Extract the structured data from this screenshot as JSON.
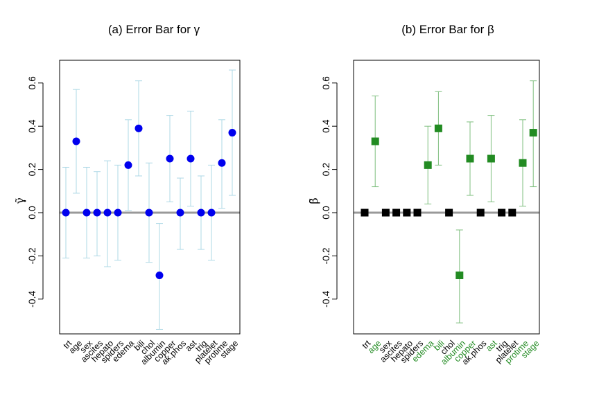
{
  "chart_data": [
    {
      "type": "scatter",
      "title": "(a) Error Bar for γ",
      "ylabel": "γ̃",
      "ylim": [
        -0.55,
        0.7
      ],
      "yticks": [
        -0.4,
        -0.2,
        0.0,
        0.2,
        0.4,
        0.6
      ],
      "ytick_labels": [
        "-0.4",
        "-0.2",
        "0.0",
        "0.2",
        "0.4",
        "0.6"
      ],
      "grid": false,
      "reference_line": 0.0,
      "reference_color": "#999999",
      "marker": "circle",
      "marker_color": "#0000ee",
      "errorbar_color": "#add8e6",
      "label_color": "#000000",
      "categories": [
        "trt",
        "age",
        "sex",
        "ascites",
        "hepato",
        "spiders",
        "edema",
        "bili",
        "chol",
        "albumin",
        "copper",
        "ak.phos",
        "ast",
        "trig",
        "platelet",
        "protime",
        "stage"
      ],
      "values": [
        0.0,
        0.33,
        0.0,
        0.0,
        0.0,
        0.0,
        0.22,
        0.39,
        0.0,
        -0.29,
        0.25,
        0.0,
        0.25,
        0.0,
        0.0,
        0.23,
        0.37
      ],
      "lower": [
        -0.21,
        0.09,
        -0.21,
        -0.2,
        -0.25,
        -0.22,
        0.01,
        0.17,
        -0.23,
        -0.54,
        0.05,
        -0.17,
        0.03,
        -0.17,
        -0.22,
        0.02,
        0.08
      ],
      "upper": [
        0.21,
        0.57,
        0.21,
        0.19,
        0.24,
        0.22,
        0.43,
        0.61,
        0.23,
        -0.05,
        0.45,
        0.16,
        0.47,
        0.17,
        0.22,
        0.43,
        0.66
      ]
    },
    {
      "type": "scatter",
      "title": "(b) Error Bar for β",
      "ylabel": "β̃",
      "ylim": [
        -0.55,
        0.7
      ],
      "yticks": [
        -0.4,
        -0.2,
        0.0,
        0.2,
        0.4,
        0.6
      ],
      "ytick_labels": [
        "-0.4",
        "-0.2",
        "0.0",
        "0.2",
        "0.4",
        "0.6"
      ],
      "grid": false,
      "reference_line": 0.0,
      "reference_color": "#999999",
      "marker": "square",
      "selected_color": "#228b22",
      "unselected_color": "#000000",
      "errorbar_color": "#7fbf7f",
      "categories": [
        "trt",
        "age",
        "sex",
        "ascites",
        "hepato",
        "spiders",
        "edema",
        "bili",
        "chol",
        "albumin",
        "copper",
        "ak.phos",
        "ast",
        "trig",
        "platelet",
        "protime",
        "stage"
      ],
      "selected": [
        false,
        true,
        false,
        false,
        false,
        false,
        true,
        true,
        false,
        true,
        true,
        false,
        true,
        false,
        false,
        true,
        true
      ],
      "values": [
        0.0,
        0.33,
        0.0,
        0.0,
        0.0,
        0.0,
        0.22,
        0.39,
        0.0,
        -0.29,
        0.25,
        0.0,
        0.25,
        0.0,
        0.0,
        0.23,
        0.37
      ],
      "lower": [
        null,
        0.12,
        null,
        null,
        null,
        null,
        0.04,
        0.22,
        null,
        -0.51,
        0.08,
        null,
        0.05,
        null,
        null,
        0.03,
        0.12
      ],
      "upper": [
        null,
        0.54,
        null,
        null,
        null,
        null,
        0.4,
        0.56,
        null,
        -0.08,
        0.42,
        null,
        0.45,
        null,
        null,
        0.43,
        0.61
      ]
    }
  ]
}
